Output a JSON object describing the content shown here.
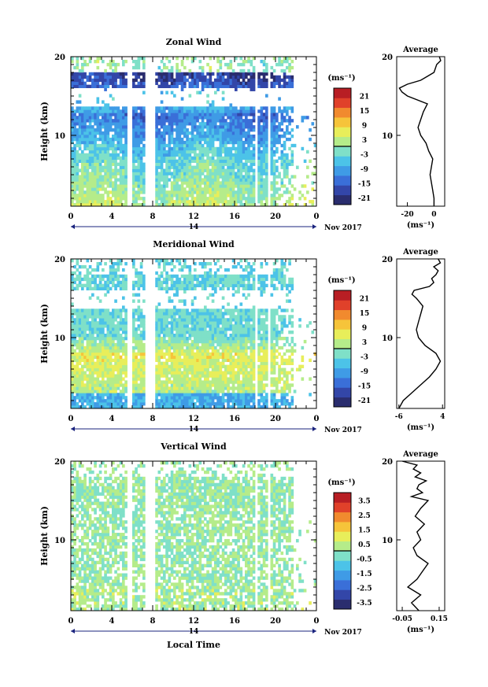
{
  "figure": {
    "date_label": "Nov 2017",
    "xlabel_bottom": "Local Time",
    "date_marker": "14"
  },
  "colormap": [
    "#2a2d6e",
    "#3346a8",
    "#3a6fd8",
    "#3f9be6",
    "#4cc3e8",
    "#7fe0c8",
    "#b5ec8a",
    "#e8ee5a",
    "#f6c43a",
    "#f18a2e",
    "#e0412a",
    "#b81e24"
  ],
  "chart_data": [
    {
      "id": "zonal",
      "type": "heatmap",
      "title": "Zonal Wind",
      "ylabel": "Height (km)",
      "xlabel": "",
      "x_ticks": [
        "0",
        "4",
        "8",
        "12",
        "16",
        "20",
        "0"
      ],
      "x_range_hours": [
        0,
        24
      ],
      "y_range_km": [
        1,
        20
      ],
      "y_ticks": [
        10,
        20
      ],
      "unit_label": "(ms⁻¹)",
      "colorbar_ticks": [
        "21",
        "15",
        "9",
        "3",
        "-3",
        "-9",
        "-15",
        "-21"
      ],
      "colorbar_range": [
        -24,
        24
      ],
      "data_gaps_hours": [
        [
          5.5,
          6.0
        ],
        [
          7.3,
          8.3
        ],
        [
          17.9,
          18.3
        ],
        [
          19.3,
          19.6
        ]
      ],
      "profile": {
        "title": "Average",
        "x_ticks": [
          "-20",
          "0"
        ],
        "xlim": [
          -28,
          8
        ],
        "xlabel": "(ms⁻¹)",
        "y_ticks": [
          "10",
          "20"
        ],
        "height_km": [
          1,
          2,
          3,
          4,
          5,
          6,
          7,
          8,
          9,
          10,
          11,
          12,
          13,
          14,
          15,
          15.5,
          16,
          16.5,
          17,
          17.5,
          18,
          18.5,
          19,
          19.5,
          20
        ],
        "values": [
          0,
          0,
          -1,
          -2,
          -3,
          -2,
          -1,
          -4,
          -6,
          -10,
          -12,
          -10,
          -8,
          -5,
          -20,
          -24,
          -26,
          -20,
          -10,
          -5,
          0,
          1,
          2,
          5,
          4
        ]
      }
    },
    {
      "id": "meridional",
      "type": "heatmap",
      "title": "Meridional Wind",
      "ylabel": "Height (km)",
      "xlabel": "",
      "x_ticks": [
        "0",
        "4",
        "8",
        "12",
        "16",
        "20",
        "0"
      ],
      "x_range_hours": [
        0,
        24
      ],
      "y_range_km": [
        1,
        20
      ],
      "y_ticks": [
        10,
        20
      ],
      "unit_label": "(ms⁻¹)",
      "colorbar_ticks": [
        "21",
        "15",
        "9",
        "3",
        "-3",
        "-9",
        "-15",
        "-21"
      ],
      "colorbar_range": [
        -24,
        24
      ],
      "data_gaps_hours": [
        [
          5.5,
          6.0
        ],
        [
          7.3,
          8.3
        ],
        [
          17.9,
          18.3
        ],
        [
          19.3,
          19.6
        ]
      ],
      "profile": {
        "title": "Average",
        "x_ticks": [
          "-6",
          "4"
        ],
        "xlim": [
          -6.5,
          4.5
        ],
        "xlabel": "(ms⁻¹)",
        "y_ticks": [
          "10",
          "20"
        ],
        "height_km": [
          1,
          2,
          3,
          4,
          5,
          6,
          7,
          8,
          9,
          10,
          11,
          12,
          13,
          14,
          15,
          15.5,
          16,
          16.5,
          17,
          17.5,
          18,
          18.5,
          19,
          19.5,
          20
        ],
        "values": [
          -6,
          -5,
          -3,
          -1,
          1,
          2.5,
          3.5,
          2.5,
          0,
          -1.5,
          -2,
          -1.5,
          -1,
          -0.5,
          -2,
          -3,
          -2.5,
          1,
          2,
          1.5,
          2.5,
          3,
          2,
          3.5,
          3
        ]
      }
    },
    {
      "id": "vertical",
      "type": "heatmap",
      "title": "Vertical Wind",
      "ylabel": "Height (km)",
      "xlabel": "Local Time",
      "x_ticks": [
        "0",
        "4",
        "8",
        "12",
        "16",
        "20",
        "0"
      ],
      "x_range_hours": [
        0,
        24
      ],
      "y_range_km": [
        1,
        20
      ],
      "y_ticks": [
        10,
        20
      ],
      "unit_label": "(ms⁻¹)",
      "colorbar_ticks": [
        "3.5",
        "2.5",
        "1.5",
        "0.5",
        "-0.5",
        "-1.5",
        "-2.5",
        "-3.5"
      ],
      "colorbar_range": [
        -4,
        4
      ],
      "data_gaps_hours": [
        [
          5.5,
          6.0
        ],
        [
          7.3,
          8.3
        ],
        [
          17.9,
          18.3
        ],
        [
          19.3,
          19.6
        ]
      ],
      "profile": {
        "title": "Average",
        "x_ticks": [
          "-0.05",
          "0.15"
        ],
        "xlim": [
          -0.08,
          0.18
        ],
        "xlabel": "(ms⁻¹)",
        "y_ticks": [
          "10",
          "20"
        ],
        "height_km": [
          1,
          2,
          3,
          4,
          5,
          6,
          7,
          8,
          9,
          10,
          11,
          12,
          13,
          14,
          15,
          15.5,
          16,
          16.5,
          17,
          17.5,
          18,
          18.5,
          19,
          19.5,
          20
        ],
        "values": [
          0.04,
          0.0,
          0.05,
          -0.02,
          0.03,
          0.06,
          0.09,
          0.03,
          0.01,
          0.05,
          0.03,
          0.07,
          0.02,
          0.05,
          0.09,
          0.0,
          0.06,
          0.03,
          0.04,
          0.08,
          0.02,
          0.05,
          0.01,
          0.03,
          -0.05
        ]
      }
    }
  ]
}
